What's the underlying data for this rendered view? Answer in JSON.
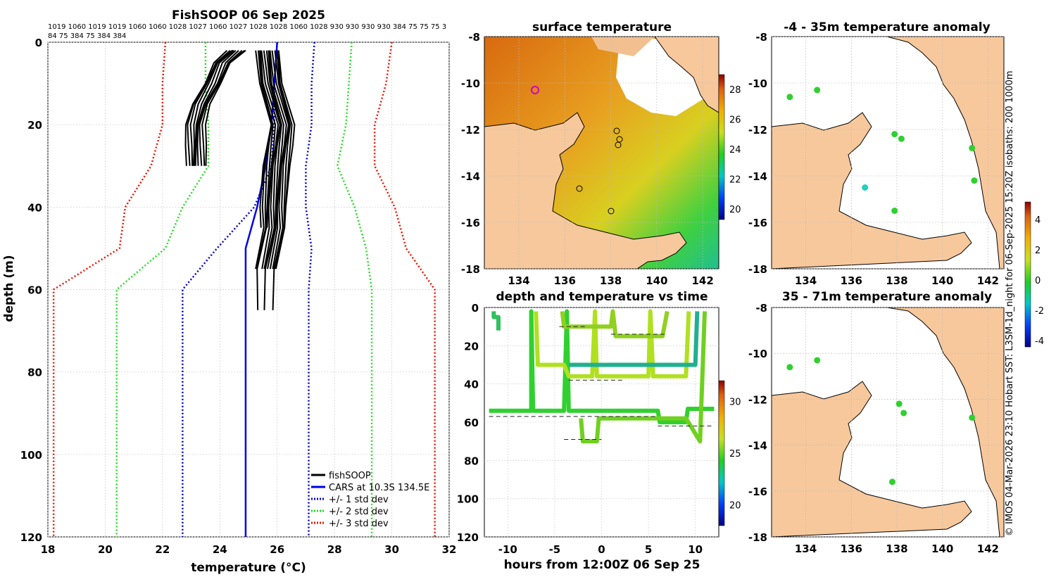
{
  "profile": {
    "title": "FishSOOP 06 Sep 2025",
    "top_labels_1": "1019 1060 1019 1019 1060 1060 1028 1027 1060 1027 1028 1028 1060 1028 930 930 930 930 384 75 75 75 3",
    "top_labels_2": "84 75 384 75 384 384",
    "xlabel": "temperature (°C)",
    "ylabel": "depth (m)",
    "xlim": [
      18,
      32
    ],
    "ylim": [
      0,
      120
    ],
    "xticks": [
      "18",
      "20",
      "22",
      "24",
      "26",
      "28",
      "30",
      "32"
    ],
    "yticks": [
      "0",
      "20",
      "40",
      "60",
      "80",
      "100",
      "120"
    ],
    "legend": [
      "fishSOOP",
      "CARS at 10.3S 134.5E",
      "+/- 1 std dev",
      "+/- 2 std dev",
      "+/- 3 std dev"
    ],
    "colors": {
      "fish": "#000000",
      "cars": "#0000ee",
      "std1": "#0000cc",
      "std2": "#22dd22",
      "std3": "#ee1100"
    }
  },
  "chart_data": [
    {
      "type": "line",
      "title": "FishSOOP 06 Sep 2025",
      "xlabel": "temperature (°C)",
      "ylabel": "depth (m)",
      "xlim": [
        18,
        32
      ],
      "ylim": [
        120,
        0
      ],
      "series": [
        {
          "name": "CARS at 10.3S 134.5E",
          "x": [
            26.0,
            25.9,
            25.8,
            25.6,
            25.3,
            24.9,
            24.9,
            24.9
          ],
          "y": [
            0,
            10,
            20,
            30,
            40,
            50,
            60,
            120
          ]
        },
        {
          "name": "-1 std dev",
          "x": [
            26.0,
            25.9,
            25.9,
            25.8,
            25.2,
            23.9,
            22.7,
            22.7
          ],
          "y": [
            0,
            10,
            20,
            30,
            40,
            50,
            60,
            120
          ]
        },
        {
          "name": "+1 std dev",
          "x": [
            27.3,
            27.2,
            27.2,
            27.0,
            27.0,
            27.2,
            27.1,
            27.1
          ],
          "y": [
            0,
            10,
            20,
            30,
            40,
            50,
            60,
            120
          ]
        },
        {
          "name": "-2 std dev",
          "x": [
            23.5,
            23.5,
            23.6,
            23.6,
            22.7,
            22.1,
            20.4,
            20.4
          ],
          "y": [
            0,
            10,
            20,
            30,
            40,
            50,
            60,
            120
          ]
        },
        {
          "name": "+2 std dev",
          "x": [
            28.6,
            28.5,
            28.4,
            28.1,
            28.7,
            29.1,
            29.3,
            29.3
          ],
          "y": [
            0,
            10,
            20,
            30,
            40,
            50,
            60,
            120
          ]
        },
        {
          "name": "-3 std dev",
          "x": [
            22.1,
            22.0,
            22.0,
            21.6,
            20.7,
            20.5,
            18.2,
            18.2
          ],
          "y": [
            0,
            10,
            20,
            30,
            40,
            50,
            60,
            120
          ]
        },
        {
          "name": "+3 std dev",
          "x": [
            30.0,
            29.8,
            29.4,
            29.4,
            30.1,
            30.5,
            31.5,
            31.5
          ],
          "y": [
            0,
            10,
            20,
            30,
            40,
            50,
            60,
            120
          ]
        },
        {
          "name": "fishSOOP shallow",
          "x": [
            24.6,
            24.1,
            23.8,
            23.4,
            23.2,
            23.2,
            23.2
          ],
          "y": [
            2,
            5,
            10,
            15,
            20,
            25,
            30
          ]
        },
        {
          "name": "fishSOOP deep",
          "x": [
            25.7,
            25.8,
            26.2,
            26.1,
            26.0,
            25.9,
            25.9,
            25.6,
            25.6,
            25.6
          ],
          "y": [
            2,
            10,
            20,
            25,
            30,
            40,
            45,
            55,
            65,
            70
          ]
        }
      ]
    },
    {
      "type": "heatmap",
      "title": "surface temperature",
      "xlim": [
        132.5,
        142.7
      ],
      "ylim": [
        -18,
        -8
      ],
      "colorbar": [
        20,
        22,
        24,
        26,
        28
      ]
    },
    {
      "type": "scatter",
      "title": "depth and temperature vs time",
      "xlabel": "hours from 12:00Z 06 Sep 25",
      "xlim": [
        -12.5,
        12.5
      ],
      "ylim": [
        120,
        0
      ],
      "colorbar": [
        20,
        25,
        30
      ]
    },
    {
      "type": "scatter",
      "title": "-4 - 35m temperature anomaly",
      "xlim": [
        132.5,
        142.7
      ],
      "ylim": [
        -18,
        -8
      ],
      "colorbar": [
        -4,
        -2,
        0,
        2,
        4
      ],
      "points": [
        {
          "lon": 133.3,
          "lat": -10.6
        },
        {
          "lon": 134.5,
          "lat": -10.3
        },
        {
          "lon": 137.9,
          "lat": -12.2
        },
        {
          "lon": 138.2,
          "lat": -12.4
        },
        {
          "lon": 141.3,
          "lat": -12.8
        },
        {
          "lon": 136.6,
          "lat": -14.5
        },
        {
          "lon": 141.4,
          "lat": -14.2
        },
        {
          "lon": 137.9,
          "lat": -15.5
        }
      ]
    },
    {
      "type": "scatter",
      "title": "35 - 71m temperature anomaly",
      "xlim": [
        132.5,
        142.7
      ],
      "ylim": [
        -18,
        -8
      ],
      "points": [
        {
          "lon": 133.3,
          "lat": -10.6
        },
        {
          "lon": 134.5,
          "lat": -10.3
        },
        {
          "lon": 138.1,
          "lat": -12.2
        },
        {
          "lon": 138.3,
          "lat": -12.6
        },
        {
          "lon": 141.3,
          "lat": -12.8
        },
        {
          "lon": 137.8,
          "lat": -15.6
        }
      ]
    }
  ],
  "map_sst": {
    "title": "surface temperature",
    "xticks": [
      "134",
      "136",
      "138",
      "140",
      "142"
    ],
    "yticks": [
      "-8",
      "-10",
      "-12",
      "-14",
      "-16",
      "-18"
    ],
    "cbar_ticks": [
      "20",
      "22",
      "24",
      "26",
      "28"
    ]
  },
  "timeplot": {
    "title": "depth and temperature vs time",
    "xlabel": "hours from 12:00Z 06 Sep 25",
    "xticks": [
      "-10",
      "-5",
      "0",
      "5",
      "10"
    ],
    "yticks": [
      "0",
      "20",
      "40",
      "60",
      "80",
      "100",
      "120"
    ],
    "cbar_ticks": [
      "20",
      "25",
      "30"
    ]
  },
  "map_anom1": {
    "title": "-4 - 35m temperature anomaly",
    "xticks": [
      "134",
      "136",
      "138",
      "140",
      "142"
    ],
    "yticks": [
      "-8",
      "-10",
      "-12",
      "-14",
      "-16",
      "-18"
    ],
    "cbar_ticks": [
      "4",
      "2",
      "0",
      "-2",
      "-4"
    ]
  },
  "map_anom2": {
    "title": "35 - 71m temperature anomaly",
    "xticks": [
      "134",
      "136",
      "138",
      "140",
      "142"
    ],
    "yticks": [
      "-8",
      "-10",
      "-12",
      "-14",
      "-16",
      "-18"
    ]
  },
  "side_note": "© IMOS 04-Mar-2026 23:10 Hobart SST: L3SM-1d_night for 06-Sep-2025 15:20Z isobaths: 200  1000m"
}
